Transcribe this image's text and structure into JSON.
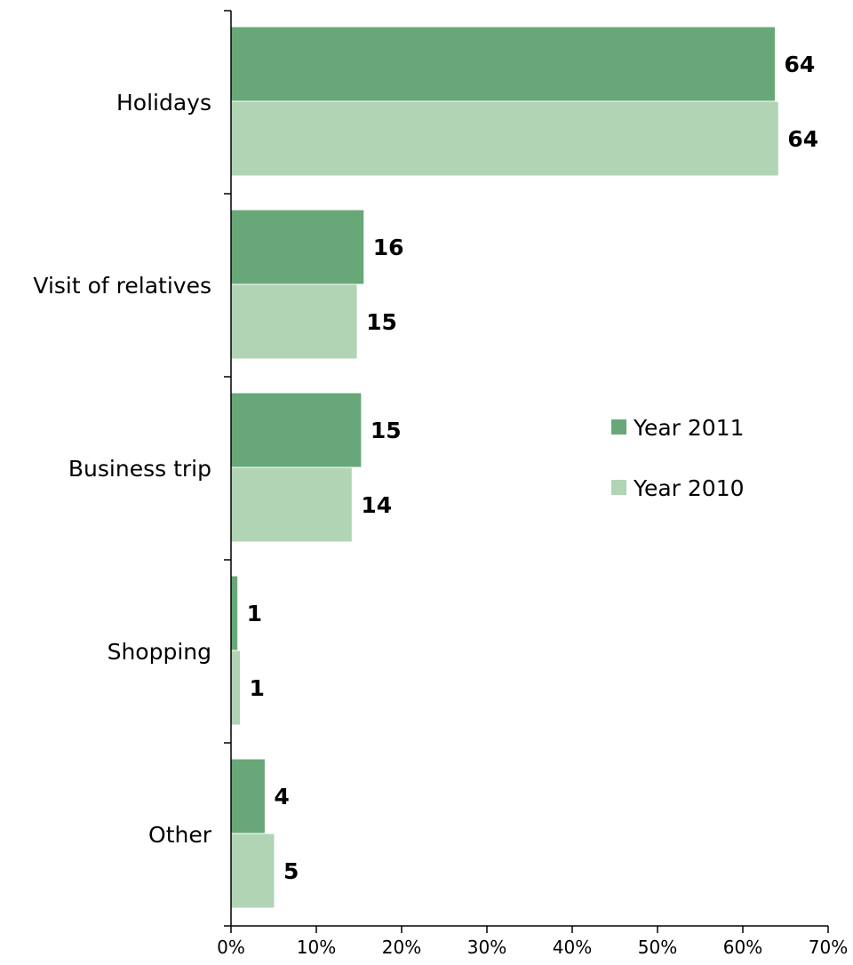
{
  "chart_data": {
    "type": "bar",
    "orientation": "horizontal",
    "categories": [
      "Holidays",
      "Visit of relatives",
      "Business trip",
      "Shopping",
      "Other"
    ],
    "series": [
      {
        "name": "Year 2011",
        "values": [
          63.8,
          15.6,
          15.3,
          0.8,
          4.0
        ],
        "labels": [
          "64",
          "16",
          "15",
          "1",
          "4"
        ],
        "color": "#68a878"
      },
      {
        "name": "Year 2010",
        "values": [
          64.2,
          14.8,
          14.2,
          1.1,
          5.1
        ],
        "labels": [
          "64",
          "15",
          "14",
          "1",
          "5"
        ],
        "color": "#b0d4b4"
      }
    ],
    "xlim": [
      0,
      70
    ],
    "xticks": [
      0,
      10,
      20,
      30,
      40,
      50,
      60,
      70
    ],
    "xtick_labels": [
      "0%",
      "10%",
      "20%",
      "30%",
      "40%",
      "50%",
      "60%",
      "70%"
    ],
    "title": "",
    "xlabel": "",
    "ylabel": "",
    "grid": false,
    "legend_position": "right"
  }
}
